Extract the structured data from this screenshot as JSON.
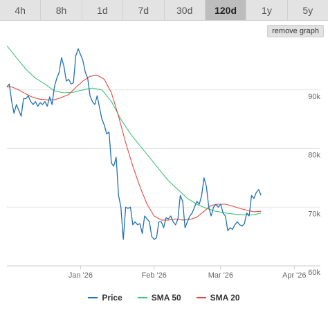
{
  "tabs": [
    {
      "label": "4h",
      "active": false
    },
    {
      "label": "8h",
      "active": false
    },
    {
      "label": "1d",
      "active": false
    },
    {
      "label": "7d",
      "active": false
    },
    {
      "label": "30d",
      "active": false
    },
    {
      "label": "120d",
      "active": true
    },
    {
      "label": "1y",
      "active": false
    },
    {
      "label": "5y",
      "active": false
    }
  ],
  "remove_graph_label": "remove graph",
  "colors": {
    "price": "#1f6fb2",
    "sma50": "#3ec27a",
    "sma20": "#e4493f",
    "grid": "#e6e6e6",
    "axis": "#cccccc"
  },
  "chart_data": {
    "type": "line",
    "x_unit": "days since Dec 1 '25",
    "xlim": [
      0,
      132
    ],
    "ylim": [
      60000,
      98000
    ],
    "x_ticks": [
      {
        "x": 31,
        "label": "Jan '26"
      },
      {
        "x": 62,
        "label": "Feb '26"
      },
      {
        "x": 90,
        "label": "Mar '26"
      },
      {
        "x": 121,
        "label": "Apr '26"
      }
    ],
    "y_ticks": [
      {
        "y": 60000,
        "label": "60k"
      },
      {
        "y": 70000,
        "label": "70k"
      },
      {
        "y": 80000,
        "label": "80k"
      },
      {
        "y": 90000,
        "label": "90k"
      }
    ],
    "series": [
      {
        "name": "Price",
        "key": "price",
        "points": [
          [
            0,
            90500
          ],
          [
            1,
            91000
          ],
          [
            2,
            88000
          ],
          [
            3,
            86000
          ],
          [
            4,
            87500
          ],
          [
            5,
            86500
          ],
          [
            6,
            85500
          ],
          [
            7,
            88500
          ],
          [
            8,
            88500
          ],
          [
            9,
            89000
          ],
          [
            10,
            88000
          ],
          [
            11,
            87500
          ],
          [
            12,
            88000
          ],
          [
            13,
            87200
          ],
          [
            14,
            87800
          ],
          [
            15,
            87500
          ],
          [
            16,
            88000
          ],
          [
            17,
            87200
          ],
          [
            18,
            88800
          ],
          [
            19,
            87500
          ],
          [
            20,
            90500
          ],
          [
            21,
            92000
          ],
          [
            22,
            93000
          ],
          [
            23,
            95500
          ],
          [
            24,
            94000
          ],
          [
            25,
            91500
          ],
          [
            26,
            91800
          ],
          [
            27,
            91000
          ],
          [
            28,
            91200
          ],
          [
            29,
            95800
          ],
          [
            30,
            97000
          ],
          [
            31,
            96000
          ],
          [
            32,
            95000
          ],
          [
            33,
            93000
          ],
          [
            34,
            92000
          ],
          [
            35,
            89000
          ],
          [
            36,
            88000
          ],
          [
            37,
            87500
          ],
          [
            38,
            89000
          ],
          [
            39,
            87000
          ],
          [
            40,
            85000
          ],
          [
            41,
            84000
          ],
          [
            42,
            82500
          ],
          [
            43,
            82800
          ],
          [
            44,
            77500
          ],
          [
            45,
            77000
          ],
          [
            46,
            78500
          ],
          [
            47,
            72000
          ],
          [
            48,
            70000
          ],
          [
            49,
            64500
          ],
          [
            50,
            70000
          ],
          [
            51,
            69800
          ],
          [
            52,
            70000
          ],
          [
            53,
            67000
          ],
          [
            54,
            67500
          ],
          [
            55,
            67000
          ],
          [
            56,
            67200
          ],
          [
            57,
            65500
          ],
          [
            58,
            68500
          ],
          [
            59,
            68000
          ],
          [
            60,
            67500
          ],
          [
            61,
            65000
          ],
          [
            62,
            64500
          ],
          [
            63,
            64800
          ],
          [
            64,
            67500
          ],
          [
            65,
            67500
          ],
          [
            66,
            66500
          ],
          [
            67,
            68200
          ],
          [
            68,
            68000
          ],
          [
            69,
            68500
          ],
          [
            70,
            67500
          ],
          [
            71,
            67000
          ],
          [
            72,
            68000
          ],
          [
            73,
            72000
          ],
          [
            74,
            71000
          ],
          [
            75,
            66500
          ],
          [
            76,
            67500
          ],
          [
            77,
            68500
          ],
          [
            78,
            69000
          ],
          [
            79,
            70000
          ],
          [
            80,
            71000
          ],
          [
            81,
            70500
          ],
          [
            82,
            72000
          ],
          [
            83,
            75000
          ],
          [
            84,
            73500
          ],
          [
            85,
            70000
          ],
          [
            86,
            68500
          ],
          [
            87,
            70000
          ],
          [
            88,
            70500
          ],
          [
            89,
            70000
          ],
          [
            90,
            70500
          ],
          [
            91,
            69000
          ],
          [
            92,
            68500
          ],
          [
            93,
            66000
          ],
          [
            94,
            66500
          ],
          [
            95,
            66200
          ],
          [
            96,
            67000
          ],
          [
            97,
            67500
          ],
          [
            98,
            67000
          ],
          [
            99,
            66800
          ],
          [
            100,
            67200
          ],
          [
            101,
            69000
          ],
          [
            102,
            68500
          ],
          [
            103,
            72000
          ],
          [
            104,
            71500
          ],
          [
            105,
            72500
          ],
          [
            106,
            73000
          ],
          [
            107,
            72000
          ]
        ]
      },
      {
        "name": "SMA 50",
        "key": "sma50",
        "points": [
          [
            0,
            97500
          ],
          [
            4,
            95500
          ],
          [
            8,
            93500
          ],
          [
            12,
            92000
          ],
          [
            16,
            91000
          ],
          [
            20,
            89800
          ],
          [
            24,
            89500
          ],
          [
            28,
            89600
          ],
          [
            32,
            90000
          ],
          [
            36,
            90300
          ],
          [
            40,
            90000
          ],
          [
            44,
            88000
          ],
          [
            48,
            85000
          ],
          [
            52,
            82500
          ],
          [
            56,
            80500
          ],
          [
            60,
            78500
          ],
          [
            64,
            76500
          ],
          [
            68,
            74500
          ],
          [
            72,
            73000
          ],
          [
            76,
            71500
          ],
          [
            80,
            70500
          ],
          [
            84,
            69800
          ],
          [
            88,
            69300
          ],
          [
            92,
            69000
          ],
          [
            96,
            68800
          ],
          [
            100,
            68700
          ],
          [
            104,
            68700
          ],
          [
            107,
            69000
          ]
        ]
      },
      {
        "name": "SMA 20",
        "key": "sma20",
        "points": [
          [
            0,
            90500
          ],
          [
            2,
            90500
          ],
          [
            5,
            90000
          ],
          [
            8,
            89300
          ],
          [
            11,
            88700
          ],
          [
            14,
            88400
          ],
          [
            17,
            88300
          ],
          [
            20,
            88300
          ],
          [
            23,
            88700
          ],
          [
            26,
            89200
          ],
          [
            29,
            90400
          ],
          [
            32,
            91500
          ],
          [
            35,
            92300
          ],
          [
            38,
            92500
          ],
          [
            41,
            91800
          ],
          [
            44,
            89500
          ],
          [
            47,
            85500
          ],
          [
            50,
            81000
          ],
          [
            53,
            77000
          ],
          [
            56,
            73500
          ],
          [
            59,
            70500
          ],
          [
            62,
            68500
          ],
          [
            65,
            67800
          ],
          [
            68,
            67800
          ],
          [
            71,
            68000
          ],
          [
            74,
            67800
          ],
          [
            77,
            67900
          ],
          [
            80,
            68300
          ],
          [
            83,
            69300
          ],
          [
            86,
            70300
          ],
          [
            89,
            70500
          ],
          [
            92,
            70500
          ],
          [
            95,
            70200
          ],
          [
            98,
            69800
          ],
          [
            101,
            69500
          ],
          [
            104,
            69200
          ],
          [
            107,
            69300
          ]
        ]
      }
    ]
  }
}
